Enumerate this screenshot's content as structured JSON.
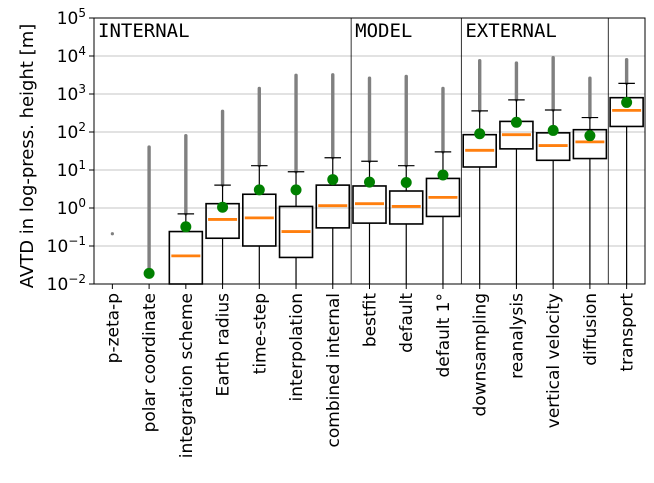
{
  "chart_data": {
    "type": "box",
    "ylabel": "AVTD in log-press. height [m]",
    "yscale": "log",
    "ylim": [
      0.01,
      100000
    ],
    "y_tick_values": [
      0.01,
      0.1,
      1,
      10,
      100,
      1000,
      10000,
      100000
    ],
    "y_tick_labels": [
      {
        "base": "10",
        "exp": "−2"
      },
      {
        "base": "10",
        "exp": "−1"
      },
      {
        "base": "10",
        "exp": "0"
      },
      {
        "base": "10",
        "exp": "1"
      },
      {
        "base": "10",
        "exp": "2"
      },
      {
        "base": "10",
        "exp": "3"
      },
      {
        "base": "10",
        "exp": "4"
      },
      {
        "base": "10",
        "exp": "5"
      }
    ],
    "grid": "horizontal",
    "groups": [
      {
        "label": "INTERNAL",
        "first": 0,
        "last": 6
      },
      {
        "label": "MODEL",
        "first": 7,
        "last": 9
      },
      {
        "label": "EXTERNAL",
        "first": 10,
        "last": 13
      },
      {
        "label": "",
        "first": 14,
        "last": 14
      }
    ],
    "categories": [
      "p-zeta-p",
      "polar coordinate",
      "integration scheme",
      "Earth radius",
      "time-step",
      "interpolation",
      "combined internal",
      "bestfit",
      "default",
      "default 1°",
      "downsampling",
      "reanalysis",
      "vertical velocity",
      "diffusion",
      "transport"
    ],
    "boxes": [
      {
        "q1": null,
        "median": null,
        "q3": null,
        "whisker_low": null,
        "whisker_high": null,
        "mean": null,
        "outlier_max": 0.21
      },
      {
        "q1": null,
        "median": null,
        "q3": null,
        "whisker_low": null,
        "whisker_high": null,
        "mean": 0.019,
        "outlier_max": 40
      },
      {
        "q1": 0.01,
        "median": 0.055,
        "q3": 0.24,
        "whisker_low": 0.01,
        "whisker_high": 0.7,
        "mean": 0.32,
        "outlier_max": 80
      },
      {
        "q1": 0.16,
        "median": 0.5,
        "q3": 1.3,
        "whisker_low": 0.01,
        "whisker_high": 4.0,
        "mean": 1.05,
        "outlier_max": 350
      },
      {
        "q1": 0.1,
        "median": 0.55,
        "q3": 2.3,
        "whisker_low": 0.01,
        "whisker_high": 13,
        "mean": 3.0,
        "outlier_max": 1400
      },
      {
        "q1": 0.05,
        "median": 0.24,
        "q3": 1.1,
        "whisker_low": 0.01,
        "whisker_high": 9.0,
        "mean": 3.0,
        "outlier_max": 3100
      },
      {
        "q1": 0.3,
        "median": 1.15,
        "q3": 4.0,
        "whisker_low": 0.01,
        "whisker_high": 21,
        "mean": 5.6,
        "outlier_max": 3200
      },
      {
        "q1": 0.4,
        "median": 1.3,
        "q3": 3.8,
        "whisker_low": 0.01,
        "whisker_high": 17,
        "mean": 4.8,
        "outlier_max": 2600
      },
      {
        "q1": 0.38,
        "median": 1.1,
        "q3": 2.8,
        "whisker_low": 0.01,
        "whisker_high": 13,
        "mean": 4.7,
        "outlier_max": 2900
      },
      {
        "q1": 0.6,
        "median": 1.9,
        "q3": 6.0,
        "whisker_low": 0.01,
        "whisker_high": 30,
        "mean": 7.4,
        "outlier_max": 1400
      },
      {
        "q1": 12,
        "median": 33,
        "q3": 85,
        "whisker_low": 0.01,
        "whisker_high": 360,
        "mean": 90,
        "outlier_max": 7500
      },
      {
        "q1": 36,
        "median": 85,
        "q3": 190,
        "whisker_low": 0.01,
        "whisker_high": 700,
        "mean": 180,
        "outlier_max": 6500
      },
      {
        "q1": 18,
        "median": 44,
        "q3": 95,
        "whisker_low": 0.01,
        "whisker_high": 380,
        "mean": 110,
        "outlier_max": 9000
      },
      {
        "q1": 20,
        "median": 55,
        "q3": 115,
        "whisker_low": 0.01,
        "whisker_high": 240,
        "mean": 80,
        "outlier_max": 2600
      },
      {
        "q1": 140,
        "median": 370,
        "q3": 800,
        "whisker_low": 0.01,
        "whisker_high": 1900,
        "mean": 600,
        "outlier_max": 8000
      }
    ],
    "colors": {
      "median": "#ff7f0e",
      "mean": "#008000",
      "outlier": "#808080",
      "box": "#000000",
      "grid": "#b0b0b0"
    }
  }
}
